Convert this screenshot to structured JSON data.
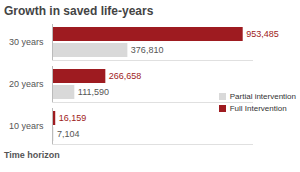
{
  "chart_data": {
    "type": "bar",
    "orientation": "horizontal",
    "title": "Growth in saved life-years",
    "ylabel": "Time horizon",
    "categories": [
      "30 years",
      "20 years",
      "10 years"
    ],
    "series": [
      {
        "name": "Full Intervention",
        "color": "#9e1b20",
        "values": [
          953485,
          266658,
          16159
        ],
        "value_labels": [
          "953,485",
          "266,658",
          "16,159"
        ]
      },
      {
        "name": "Partial intervention",
        "color": "#d9d9d9",
        "values": [
          376810,
          111590,
          7104
        ],
        "value_labels": [
          "376,810",
          "111,590",
          "7,104"
        ]
      }
    ],
    "xlim": [
      0,
      1000000
    ],
    "data_labels": true,
    "tick_labels": "y",
    "legend": "right"
  }
}
